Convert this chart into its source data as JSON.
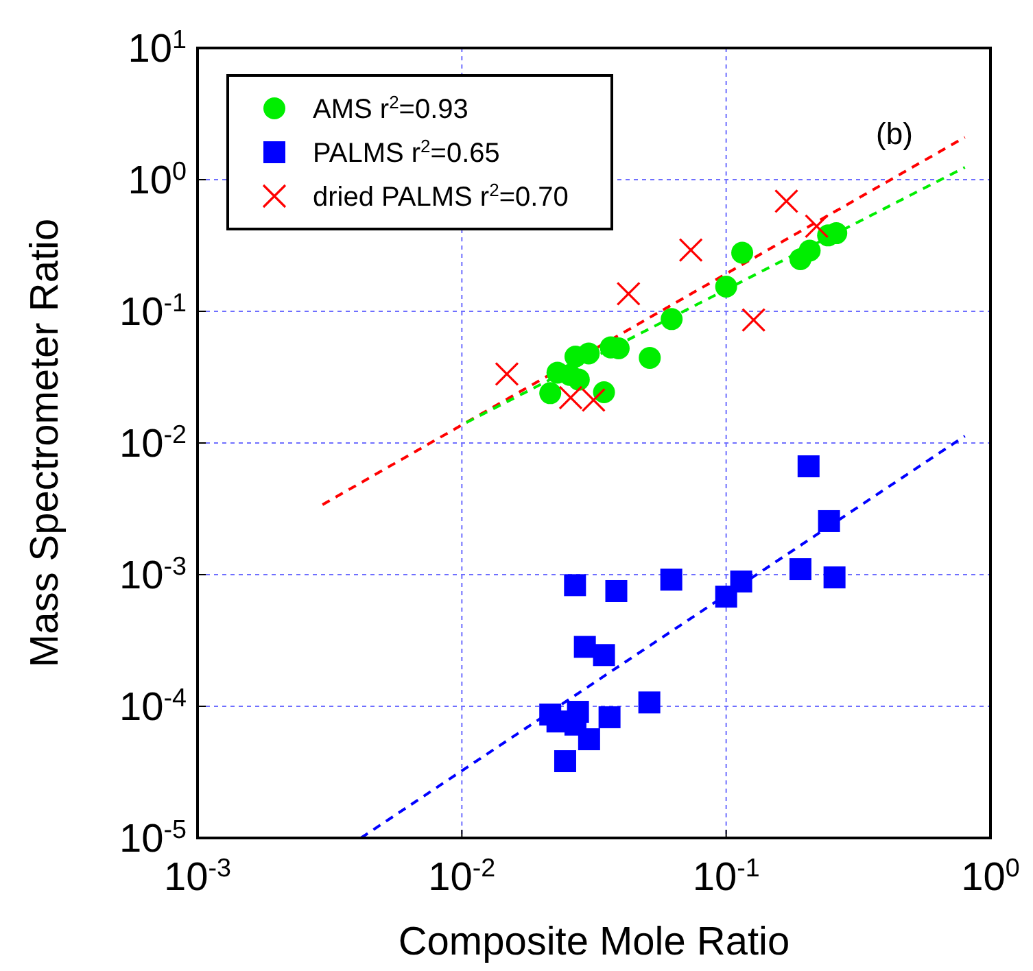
{
  "chart_data": {
    "type": "scatter",
    "xlabel": "Composite Mole Ratio",
    "ylabel": "Mass Spectrometer Ratio",
    "log": "xy",
    "grid": true,
    "legend": "top left",
    "xlim": [
      0.001,
      1
    ],
    "ylim": [
      1e-05,
      10
    ],
    "xticks": [
      {
        "value": 0.001,
        "label": "10$^{-3}$"
      },
      {
        "value": 0.01,
        "label": "10$^{-2}$"
      },
      {
        "value": 0.1,
        "label": "10$^{-1}$"
      },
      {
        "value": 1,
        "label": "10$^{0}$"
      }
    ],
    "yticks": [
      {
        "value": 1e-05,
        "label": "10$^{-5}$"
      },
      {
        "value": 0.0001,
        "label": "10$^{-4}$"
      },
      {
        "value": 0.001,
        "label": "10$^{-3}$"
      },
      {
        "value": 0.01,
        "label": "10$^{-2}$"
      },
      {
        "value": 0.1,
        "label": "10$^{-1}$"
      },
      {
        "value": 1,
        "label": "10$^{0}$"
      },
      {
        "value": 10,
        "label": "10$^{1}$"
      }
    ],
    "annotations": [
      "(b)"
    ],
    "series": [
      {
        "type": "line",
        "line_style": "dashed",
        "marker": "none",
        "color": "#ff0000",
        "x": [
          0.00297,
          0.8
        ],
        "values": [
          0.0034,
          2.1
        ]
      },
      {
        "type": "line",
        "line_style": "dashed",
        "marker": "none",
        "color": "#00ee00",
        "x": [
          0.0104,
          0.8
        ],
        "values": [
          0.0143,
          1.24
        ]
      },
      {
        "type": "line",
        "line_style": "dashed",
        "marker": "none",
        "color": "#0000ff",
        "x": [
          0.00415,
          0.8
        ],
        "values": [
          1e-05,
          0.0113
        ]
      },
      {
        "name": "AMS r$^{2}$=0.93",
        "marker": "circle",
        "color": "#00ee00",
        "x": [
          0.0216,
          0.023,
          0.0256,
          0.0277,
          0.0269,
          0.0302,
          0.0366,
          0.0392,
          0.0345,
          0.0514,
          0.0622,
          0.1,
          0.115,
          0.191,
          0.207,
          0.243,
          0.261
        ],
        "values": [
          0.0239,
          0.0342,
          0.0329,
          0.0303,
          0.0453,
          0.0479,
          0.0532,
          0.0523,
          0.0243,
          0.0443,
          0.0873,
          0.154,
          0.279,
          0.249,
          0.289,
          0.377,
          0.392
        ]
      },
      {
        "name": "PALMS r$^{2}$=0.65",
        "marker": "square",
        "color": "#0000ff",
        "x": [
          0.205,
          0.245,
          0.191,
          0.257,
          0.114,
          0.1,
          0.062,
          0.0268,
          0.0384,
          0.0292,
          0.0345,
          0.0512,
          0.0216,
          0.023,
          0.0275,
          0.0269,
          0.0362,
          0.0303,
          0.0246
        ],
        "values": [
          0.00665,
          0.00255,
          0.0011,
          0.000953,
          0.000887,
          0.000681,
          0.000916,
          0.000832,
          0.00075,
          0.000283,
          0.000245,
          0.000107,
          8.66e-05,
          7.67e-05,
          9.08e-05,
          7.26e-05,
          8.26e-05,
          5.62e-05,
          3.83e-05
        ]
      },
      {
        "name": "dried PALMS r$^{2}$=0.70",
        "marker": "cross",
        "color": "#ff0000",
        "x": [
          0.0148,
          0.0258,
          0.0315,
          0.0427,
          0.0735,
          0.127,
          0.169,
          0.22
        ],
        "values": [
          0.0334,
          0.0221,
          0.0212,
          0.136,
          0.292,
          0.086,
          0.686,
          0.443
        ]
      }
    ]
  }
}
